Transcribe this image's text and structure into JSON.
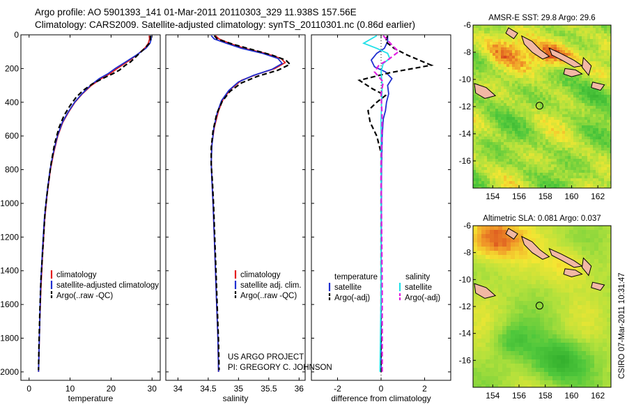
{
  "header": {
    "line1": "Argo profile: AO 5901393_141 01-Mar-2011 20110303_329 11.938S 157.56E",
    "line2": "Climatology: CARS2009. Satellite-adjusted climatology: synTS_20110301.nc (0.86d earlier)"
  },
  "credit": {
    "line1": "US ARGO PROJECT",
    "line2": "PI: GREGORY C. JOHNSON",
    "side": "CSIRO 07-Mar-2011 10:31:47"
  },
  "colors": {
    "climatology": "#e41a1c",
    "satellite": "#1f2fd0",
    "argo": "#000000",
    "salinity_satellite": "#22e0e8",
    "salinity_argo": "#e020e0"
  },
  "chart_data": [
    {
      "type": "line",
      "xlabel": "temperature",
      "xticks": [
        0,
        10,
        20,
        30
      ],
      "xlim": [
        -2,
        32
      ],
      "ylim": [
        2050,
        0
      ],
      "yticks": [
        0,
        200,
        400,
        600,
        800,
        1000,
        1200,
        1400,
        1600,
        1800,
        2000
      ],
      "y_inverted": true,
      "legend": [
        "climatology",
        "satellite-adjusted climatology",
        "Argo(..raw -QC)"
      ],
      "legend_position": "lower-center",
      "series": [
        {
          "name": "climatology",
          "style": "solid",
          "color": "#e41a1c",
          "points": [
            [
              29.3,
              5
            ],
            [
              29.4,
              25
            ],
            [
              29.1,
              50
            ],
            [
              28.4,
              75
            ],
            [
              26.8,
              110
            ],
            [
              24.6,
              150
            ],
            [
              21.5,
              200
            ],
            [
              19.8,
              230
            ],
            [
              17.6,
              260
            ],
            [
              15.2,
              300
            ],
            [
              13.0,
              350
            ],
            [
              11.2,
              400
            ],
            [
              9.6,
              460
            ],
            [
              8.2,
              520
            ],
            [
              7.0,
              600
            ],
            [
              6.0,
              700
            ],
            [
              5.2,
              800
            ],
            [
              4.4,
              950
            ],
            [
              3.8,
              1100
            ],
            [
              3.3,
              1300
            ],
            [
              2.9,
              1500
            ],
            [
              2.6,
              1700
            ],
            [
              2.4,
              1900
            ],
            [
              2.3,
              2000
            ]
          ]
        },
        {
          "name": "satellite-adjusted climatology",
          "style": "solid",
          "color": "#1f2fd0",
          "points": [
            [
              29.7,
              5
            ],
            [
              29.8,
              25
            ],
            [
              29.5,
              50
            ],
            [
              28.5,
              80
            ],
            [
              26.2,
              120
            ],
            [
              23.6,
              160
            ],
            [
              21.0,
              200
            ],
            [
              19.3,
              230
            ],
            [
              17.1,
              260
            ],
            [
              15.0,
              300
            ],
            [
              12.9,
              350
            ],
            [
              11.1,
              400
            ],
            [
              9.5,
              460
            ],
            [
              8.1,
              520
            ],
            [
              6.9,
              600
            ],
            [
              5.9,
              700
            ],
            [
              5.1,
              800
            ],
            [
              4.3,
              950
            ],
            [
              3.7,
              1100
            ],
            [
              3.2,
              1300
            ],
            [
              2.8,
              1500
            ],
            [
              2.6,
              1700
            ],
            [
              2.4,
              1900
            ],
            [
              2.3,
              2000
            ]
          ]
        },
        {
          "name": "Argo(..raw -QC)",
          "style": "dashed",
          "color": "#000000",
          "points": [
            [
              29.6,
              5
            ],
            [
              29.6,
              30
            ],
            [
              29.2,
              55
            ],
            [
              28.0,
              85
            ],
            [
              26.5,
              120
            ],
            [
              24.8,
              160
            ],
            [
              23.5,
              180
            ],
            [
              22.0,
              210
            ],
            [
              20.5,
              230
            ],
            [
              18.3,
              255
            ],
            [
              15.5,
              290
            ],
            [
              13.2,
              330
            ],
            [
              11.5,
              370
            ],
            [
              10.0,
              420
            ],
            [
              8.5,
              480
            ],
            [
              7.3,
              550
            ],
            [
              6.2,
              650
            ],
            [
              5.4,
              760
            ],
            [
              4.6,
              900
            ],
            [
              3.9,
              1050
            ],
            [
              3.4,
              1250
            ],
            [
              2.9,
              1450
            ],
            [
              2.6,
              1650
            ],
            [
              2.4,
              1850
            ],
            [
              2.3,
              1990
            ]
          ]
        }
      ]
    },
    {
      "type": "line",
      "xlabel": "salinity",
      "xticks": [
        34,
        34.5,
        35,
        35.5,
        36
      ],
      "xlim": [
        33.8,
        36.1
      ],
      "ylim": [
        2050,
        0
      ],
      "y_inverted": true,
      "legend": [
        "climatology",
        "satellite adj. clim.",
        "Argo(..raw -QC)"
      ],
      "legend_position": "lower-center",
      "series": [
        {
          "name": "climatology",
          "style": "solid",
          "color": "#e41a1c",
          "points": [
            [
              34.62,
              5
            ],
            [
              34.68,
              25
            ],
            [
              34.85,
              50
            ],
            [
              35.1,
              80
            ],
            [
              35.45,
              110
            ],
            [
              35.7,
              140
            ],
            [
              35.77,
              165
            ],
            [
              35.6,
              200
            ],
            [
              35.3,
              235
            ],
            [
              35.05,
              270
            ],
            [
              34.88,
              320
            ],
            [
              34.75,
              380
            ],
            [
              34.67,
              450
            ],
            [
              34.6,
              550
            ],
            [
              34.56,
              650
            ],
            [
              34.55,
              750
            ],
            [
              34.56,
              850
            ],
            [
              34.58,
              1000
            ],
            [
              34.6,
              1200
            ],
            [
              34.62,
              1400
            ],
            [
              34.64,
              1600
            ],
            [
              34.66,
              1800
            ],
            [
              34.67,
              2000
            ]
          ]
        },
        {
          "name": "satellite adj. clim.",
          "style": "solid",
          "color": "#1f2fd0",
          "points": [
            [
              34.55,
              5
            ],
            [
              34.6,
              25
            ],
            [
              34.8,
              50
            ],
            [
              35.05,
              80
            ],
            [
              35.4,
              110
            ],
            [
              35.65,
              140
            ],
            [
              35.72,
              170
            ],
            [
              35.55,
              205
            ],
            [
              35.25,
              240
            ],
            [
              35.0,
              280
            ],
            [
              34.84,
              330
            ],
            [
              34.72,
              390
            ],
            [
              34.65,
              460
            ],
            [
              34.59,
              560
            ],
            [
              34.56,
              660
            ],
            [
              34.55,
              760
            ],
            [
              34.56,
              860
            ],
            [
              34.58,
              1000
            ],
            [
              34.6,
              1200
            ],
            [
              34.62,
              1400
            ],
            [
              34.64,
              1600
            ],
            [
              34.66,
              1800
            ],
            [
              34.67,
              2000
            ]
          ]
        },
        {
          "name": "Argo(..raw -QC)",
          "style": "dashed",
          "color": "#000000",
          "points": [
            [
              34.6,
              5
            ],
            [
              34.65,
              25
            ],
            [
              34.9,
              55
            ],
            [
              35.2,
              85
            ],
            [
              35.55,
              120
            ],
            [
              35.78,
              150
            ],
            [
              35.85,
              175
            ],
            [
              35.65,
              210
            ],
            [
              35.32,
              245
            ],
            [
              35.05,
              285
            ],
            [
              34.86,
              335
            ],
            [
              34.73,
              395
            ],
            [
              34.64,
              470
            ],
            [
              34.58,
              570
            ],
            [
              34.55,
              670
            ],
            [
              34.55,
              770
            ],
            [
              34.57,
              880
            ],
            [
              34.59,
              1020
            ],
            [
              34.61,
              1220
            ],
            [
              34.63,
              1420
            ],
            [
              34.65,
              1620
            ],
            [
              34.67,
              1820
            ],
            [
              34.68,
              1990
            ]
          ]
        }
      ]
    },
    {
      "type": "line",
      "xlabel": "difference from climatology",
      "xticks": [
        -2,
        0,
        2
      ],
      "xlim": [
        -3.2,
        3.2
      ],
      "ylim": [
        2050,
        0
      ],
      "y_inverted": true,
      "legend_groups": [
        {
          "title": "temperature",
          "items": [
            "satellite",
            "Argo(-adj)"
          ]
        },
        {
          "title": "salinity",
          "items": [
            "satellite",
            "Argo(-adj)"
          ]
        }
      ],
      "legend_position": "lower-center",
      "series": [
        {
          "name": "satellite",
          "group": "temperature",
          "style": "solid",
          "color": "#1f2fd0",
          "points": [
            [
              0.3,
              5
            ],
            [
              0.3,
              40
            ],
            [
              0.15,
              80
            ],
            [
              -0.2,
              110
            ],
            [
              -0.45,
              150
            ],
            [
              -0.3,
              190
            ],
            [
              0.2,
              220
            ],
            [
              0.5,
              260
            ],
            [
              0.3,
              300
            ],
            [
              0.35,
              350
            ],
            [
              0.25,
              400
            ],
            [
              0.2,
              450
            ],
            [
              0.1,
              500
            ],
            [
              0.05,
              600
            ],
            [
              0.02,
              800
            ],
            [
              0.01,
              1200
            ],
            [
              0.0,
              1600
            ],
            [
              0.0,
              2000
            ]
          ]
        },
        {
          "name": "Argo(-adj)",
          "group": "temperature",
          "style": "dashed",
          "color": "#000000",
          "points": [
            [
              0.3,
              5
            ],
            [
              0.2,
              40
            ],
            [
              0.6,
              80
            ],
            [
              1.2,
              120
            ],
            [
              2.3,
              180
            ],
            [
              0.4,
              225
            ],
            [
              -1.0,
              270
            ],
            [
              -0.4,
              320
            ],
            [
              0.2,
              360
            ],
            [
              -0.2,
              400
            ],
            [
              -0.6,
              450
            ],
            [
              -0.5,
              520
            ],
            [
              -0.2,
              600
            ],
            [
              0.0,
              700
            ],
            [
              0.0,
              900
            ],
            [
              0.0,
              1200
            ],
            [
              0.0,
              1600
            ],
            [
              0.0,
              2000
            ]
          ]
        },
        {
          "name": "satellite",
          "group": "salinity",
          "style": "solid",
          "color": "#22e0e8",
          "points": [
            [
              -0.2,
              5
            ],
            [
              -0.8,
              50
            ],
            [
              -0.2,
              80
            ],
            [
              0.3,
              110
            ],
            [
              0.4,
              140
            ],
            [
              0.1,
              170
            ],
            [
              0.0,
              220
            ],
            [
              0.05,
              300
            ],
            [
              0.0,
              500
            ],
            [
              0.0,
              1000
            ],
            [
              0.0,
              1500
            ],
            [
              -0.05,
              2000
            ]
          ]
        },
        {
          "name": "Argo(-adj)",
          "group": "salinity",
          "style": "dashed",
          "color": "#e020e0",
          "points": [
            [
              0.1,
              5
            ],
            [
              0.5,
              60
            ],
            [
              0.8,
              100
            ],
            [
              0.3,
              150
            ],
            [
              -0.1,
              180
            ],
            [
              -0.3,
              220
            ],
            [
              0.1,
              280
            ],
            [
              0.0,
              350
            ],
            [
              0.05,
              500
            ],
            [
              0.0,
              800
            ],
            [
              0.05,
              1500
            ],
            [
              0.05,
              2000
            ]
          ]
        }
      ]
    },
    {
      "type": "heatmap",
      "title": "AMSR-E SST: 29.8 Argo: 29.6",
      "xticks": [
        154,
        156,
        158,
        160,
        162
      ],
      "yticks": [
        -6,
        -8,
        -10,
        -12,
        -14,
        -16
      ],
      "xlim": [
        152.5,
        163
      ],
      "ylim": [
        -18,
        -6
      ],
      "colormap": "green-yellow-red",
      "marker": {
        "lon": 157.56,
        "lat": -11.938
      }
    },
    {
      "type": "heatmap",
      "title": "Altimetric SLA: 0.081 Argo: 0.037",
      "xticks": [
        154,
        156,
        158,
        160,
        162
      ],
      "yticks": [
        -6,
        -8,
        -10,
        -12,
        -14,
        -16
      ],
      "xlim": [
        152.5,
        163
      ],
      "ylim": [
        -18,
        -6
      ],
      "colormap": "green-yellow-red",
      "marker": {
        "lon": 157.56,
        "lat": -11.938
      }
    }
  ]
}
